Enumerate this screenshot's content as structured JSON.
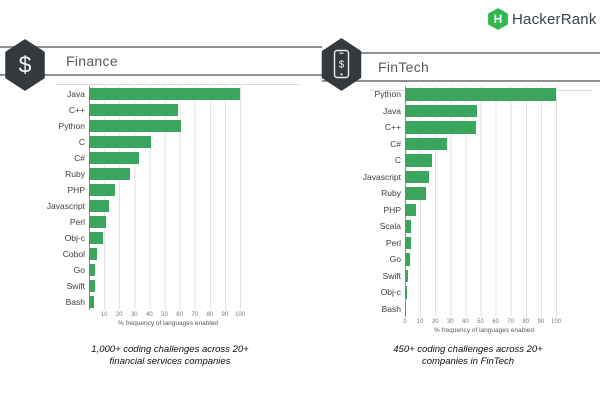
{
  "logo": {
    "brand": "HackerRank",
    "letter": "H"
  },
  "colors": {
    "bar_green": "#3aa55d",
    "brand_green": "#2fb750",
    "hexagon_dark": "#33393d",
    "band_line_gray": "#8d9194"
  },
  "sections": [
    {
      "title": "Finance",
      "icon": "dollar-hexagon-icon",
      "icon_glyph": "$",
      "caption_line1": "1,000+ coding challenges across 20+",
      "caption_line2": "financial services companies"
    },
    {
      "title": "FinTech",
      "icon": "mobile-dollar-hexagon-icon",
      "icon_glyph": "$",
      "caption_line1": "450+ coding  challenges across 20+",
      "caption_line2": "companies in FinTech"
    }
  ],
  "chart_data": [
    {
      "type": "bar",
      "orientation": "horizontal",
      "title": "Finance",
      "categories": [
        "Java",
        "C++",
        "Python",
        "C",
        "C#",
        "Ruby",
        "PHP",
        "Javascript",
        "Perl",
        "Obj-c",
        "Cobol",
        "Go",
        "Swift",
        "Bash"
      ],
      "values": [
        100,
        59,
        61,
        41,
        33,
        27,
        17,
        13,
        11,
        9,
        5,
        4,
        4,
        3
      ],
      "xticks": [
        10,
        20,
        30,
        40,
        50,
        60,
        70,
        80,
        90,
        100
      ],
      "xlabel": "% frequency of languages enabled",
      "xlim": [
        0,
        105
      ],
      "grid": true,
      "legend": false,
      "bar_color": "#3aa55d"
    },
    {
      "type": "bar",
      "orientation": "horizontal",
      "title": "FinTech",
      "categories": [
        "Python",
        "Java",
        "C++",
        "C#",
        "C",
        "Javascript",
        "Ruby",
        "PHP",
        "Scala",
        "Perl",
        "Go",
        "Swift",
        "Obj-c",
        "Bash"
      ],
      "values": [
        100,
        48,
        47,
        28,
        18,
        16,
        14,
        7,
        4,
        4,
        3,
        2,
        1,
        0.5
      ],
      "xticks": [
        0,
        10,
        20,
        30,
        40,
        50,
        60,
        70,
        80,
        90,
        100
      ],
      "xlabel": "% frequency of languages enabled",
      "xlim": [
        0,
        105
      ],
      "grid": true,
      "legend": false,
      "bar_color": "#3aa55d"
    }
  ]
}
